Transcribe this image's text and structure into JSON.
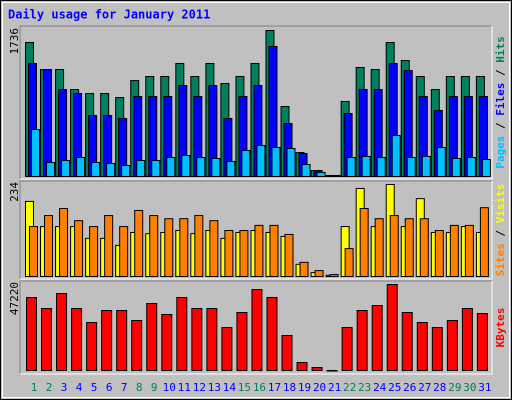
{
  "title": "Daily usage for January 2011",
  "legend_separator": " / ",
  "chart_data": [
    {
      "type": "bar",
      "ylim": [
        0,
        1736
      ],
      "yticks": [
        1736
      ],
      "series": [
        {
          "name": "Hits",
          "color": "#00805c",
          "values": [
            1593,
            1272,
            1272,
            1034,
            987,
            987,
            939,
            1141,
            1189,
            1189,
            1344,
            1189,
            1344,
            1106,
            1189,
            1344,
            1736,
            832,
            285,
            71,
            12,
            892,
            1296,
            1272,
            1593,
            1379,
            1189,
            1034,
            1189,
            1189,
            1189
          ]
        },
        {
          "name": "Files",
          "color": "#0000ff",
          "values": [
            1344,
            1272,
            1034,
            987,
            725,
            725,
            690,
            951,
            951,
            951,
            1082,
            951,
            1082,
            690,
            951,
            1082,
            1546,
            630,
            273,
            71,
            12,
            749,
            1034,
            1034,
            1344,
            1260,
            951,
            785,
            951,
            951,
            951
          ]
        },
        {
          "name": "Pages",
          "color": "#00c0ff",
          "values": [
            559,
            166,
            190,
            226,
            166,
            155,
            131,
            190,
            190,
            226,
            250,
            226,
            214,
            178,
            309,
            369,
            345,
            333,
            143,
            48,
            12,
            226,
            238,
            226,
            487,
            226,
            238,
            345,
            214,
            226,
            202
          ]
        }
      ]
    },
    {
      "type": "bar",
      "ylim": [
        0,
        234
      ],
      "yticks": [
        234
      ],
      "series": [
        {
          "name": "Visits",
          "color": "#ffff00",
          "values": [
            191,
            127,
            127,
            127,
            97,
            97,
            79,
            112,
            109,
            112,
            117,
            109,
            117,
            97,
            112,
            117,
            112,
            102,
            31,
            10,
            3,
            127,
            224,
            127,
            234,
            127,
            198,
            112,
            112,
            127,
            112
          ]
        },
        {
          "name": "Sites",
          "color": "#ff8000",
          "values": [
            127,
            155,
            173,
            142,
            127,
            155,
            127,
            168,
            155,
            147,
            147,
            155,
            142,
            117,
            117,
            130,
            130,
            107,
            36,
            15,
            5,
            71,
            173,
            147,
            155,
            147,
            147,
            117,
            130,
            130,
            175
          ]
        }
      ]
    },
    {
      "type": "bar",
      "ylim": [
        0,
        47220
      ],
      "yticks": [
        47220
      ],
      "categories": [
        "1",
        "2",
        "3",
        "4",
        "5",
        "6",
        "7",
        "8",
        "9",
        "10",
        "11",
        "12",
        "13",
        "14",
        "15",
        "16",
        "17",
        "18",
        "19",
        "20",
        "21",
        "22",
        "23",
        "24",
        "25",
        "26",
        "27",
        "28",
        "29",
        "30",
        "31"
      ],
      "label_colors": [
        "#00805c",
        "#00805c",
        "#0000ff",
        "#0000ff",
        "#0000ff",
        "#0000ff",
        "#0000ff",
        "#00805c",
        "#00805c",
        "#0000ff",
        "#0000ff",
        "#0000ff",
        "#0000ff",
        "#0000ff",
        "#00805c",
        "#00805c",
        "#0000ff",
        "#0000ff",
        "#0000ff",
        "#0000ff",
        "#0000ff",
        "#00805c",
        "#00805c",
        "#0000ff",
        "#0000ff",
        "#0000ff",
        "#0000ff",
        "#0000ff",
        "#00805c",
        "#00805c",
        "#0000ff"
      ],
      "series": [
        {
          "name": "KBytes",
          "color": "#ff0000",
          "values": [
            40079,
            34040,
            42277,
            34040,
            26355,
            32943,
            32943,
            27453,
            36787,
            30747,
            40079,
            34040,
            34040,
            23609,
            31845,
            44474,
            40079,
            19217,
            4392,
            1647,
            0,
            23609,
            32943,
            35689,
            47220,
            31845,
            26355,
            23609,
            27453,
            34040,
            31296
          ]
        }
      ]
    }
  ]
}
